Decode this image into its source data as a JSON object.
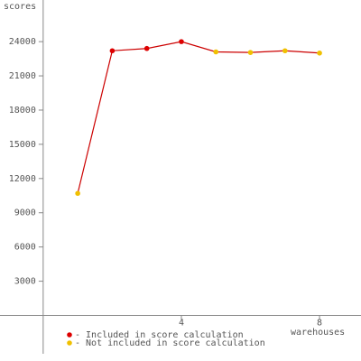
{
  "chart_data": {
    "type": "line",
    "y_label": "scores",
    "x_label": "warehouses",
    "x": [
      1,
      2,
      3,
      4,
      5,
      6,
      7,
      8
    ],
    "values": [
      10700,
      23200,
      23400,
      24000,
      23100,
      23050,
      23200,
      23000
    ],
    "included": [
      false,
      true,
      true,
      true,
      false,
      false,
      false,
      false
    ],
    "line_color": "#cc0000",
    "legend": [
      {
        "name": "- Included in score calculation",
        "color": "#dd0000"
      },
      {
        "name": "- Not included in score calculation",
        "color": "#f0c000"
      }
    ],
    "xlim": [
      -1.25,
      9.2
    ],
    "xticks": [
      4,
      8
    ],
    "ylim": [
      -3600,
      27650
    ],
    "yticks": [
      3000,
      6000,
      9000,
      12000,
      15000,
      18000,
      21000,
      24000
    ]
  }
}
